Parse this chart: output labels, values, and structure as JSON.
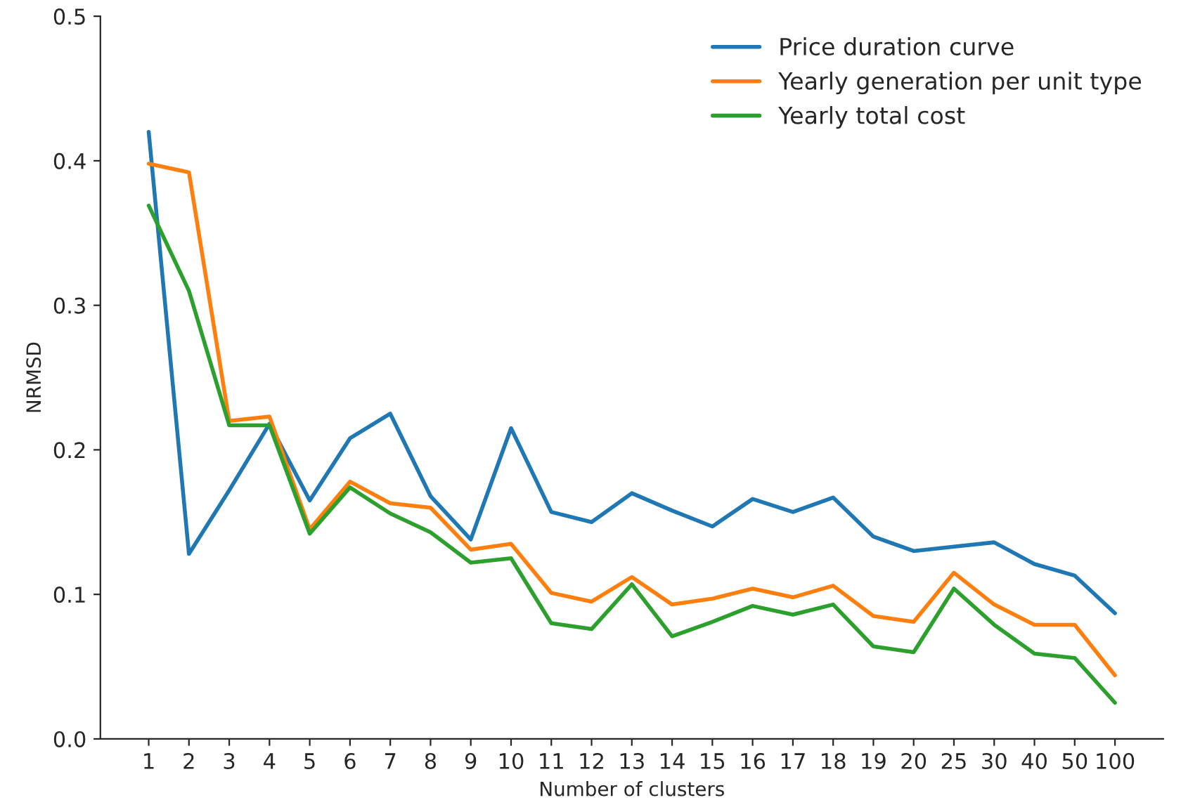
{
  "chart_data": {
    "type": "line",
    "xlabel": "Number of clusters",
    "ylabel": "NRMSD",
    "categories": [
      "1",
      "2",
      "3",
      "4",
      "5",
      "6",
      "7",
      "8",
      "9",
      "10",
      "11",
      "12",
      "13",
      "14",
      "15",
      "16",
      "17",
      "18",
      "19",
      "20",
      "25",
      "30",
      "40",
      "50",
      "100"
    ],
    "series": [
      {
        "name": "Price duration curve",
        "color": "#1f77b4",
        "values": [
          0.42,
          0.128,
          0.172,
          0.218,
          0.165,
          0.208,
          0.225,
          0.168,
          0.138,
          0.215,
          0.157,
          0.15,
          0.17,
          0.158,
          0.147,
          0.166,
          0.157,
          0.167,
          0.14,
          0.13,
          0.133,
          0.136,
          0.121,
          0.113,
          0.087
        ]
      },
      {
        "name": "Yearly generation per unit type",
        "color": "#ff7f0e",
        "values": [
          0.398,
          0.392,
          0.22,
          0.223,
          0.145,
          0.178,
          0.163,
          0.16,
          0.131,
          0.135,
          0.101,
          0.095,
          0.112,
          0.093,
          0.097,
          0.104,
          0.098,
          0.106,
          0.085,
          0.081,
          0.115,
          0.093,
          0.079,
          0.079,
          0.044
        ]
      },
      {
        "name": "Yearly total cost",
        "color": "#2ca02c",
        "values": [
          0.369,
          0.31,
          0.217,
          0.217,
          0.142,
          0.174,
          0.156,
          0.143,
          0.122,
          0.125,
          0.08,
          0.076,
          0.107,
          0.071,
          0.081,
          0.092,
          0.086,
          0.093,
          0.064,
          0.06,
          0.104,
          0.079,
          0.059,
          0.056,
          0.025
        ]
      }
    ],
    "ylim": [
      0,
      0.5
    ],
    "yticks": [
      {
        "value": 0,
        "label": "0.0"
      },
      0.1,
      0.2,
      0.3,
      0.4,
      0.5
    ],
    "legend": "top right",
    "grid": false
  }
}
